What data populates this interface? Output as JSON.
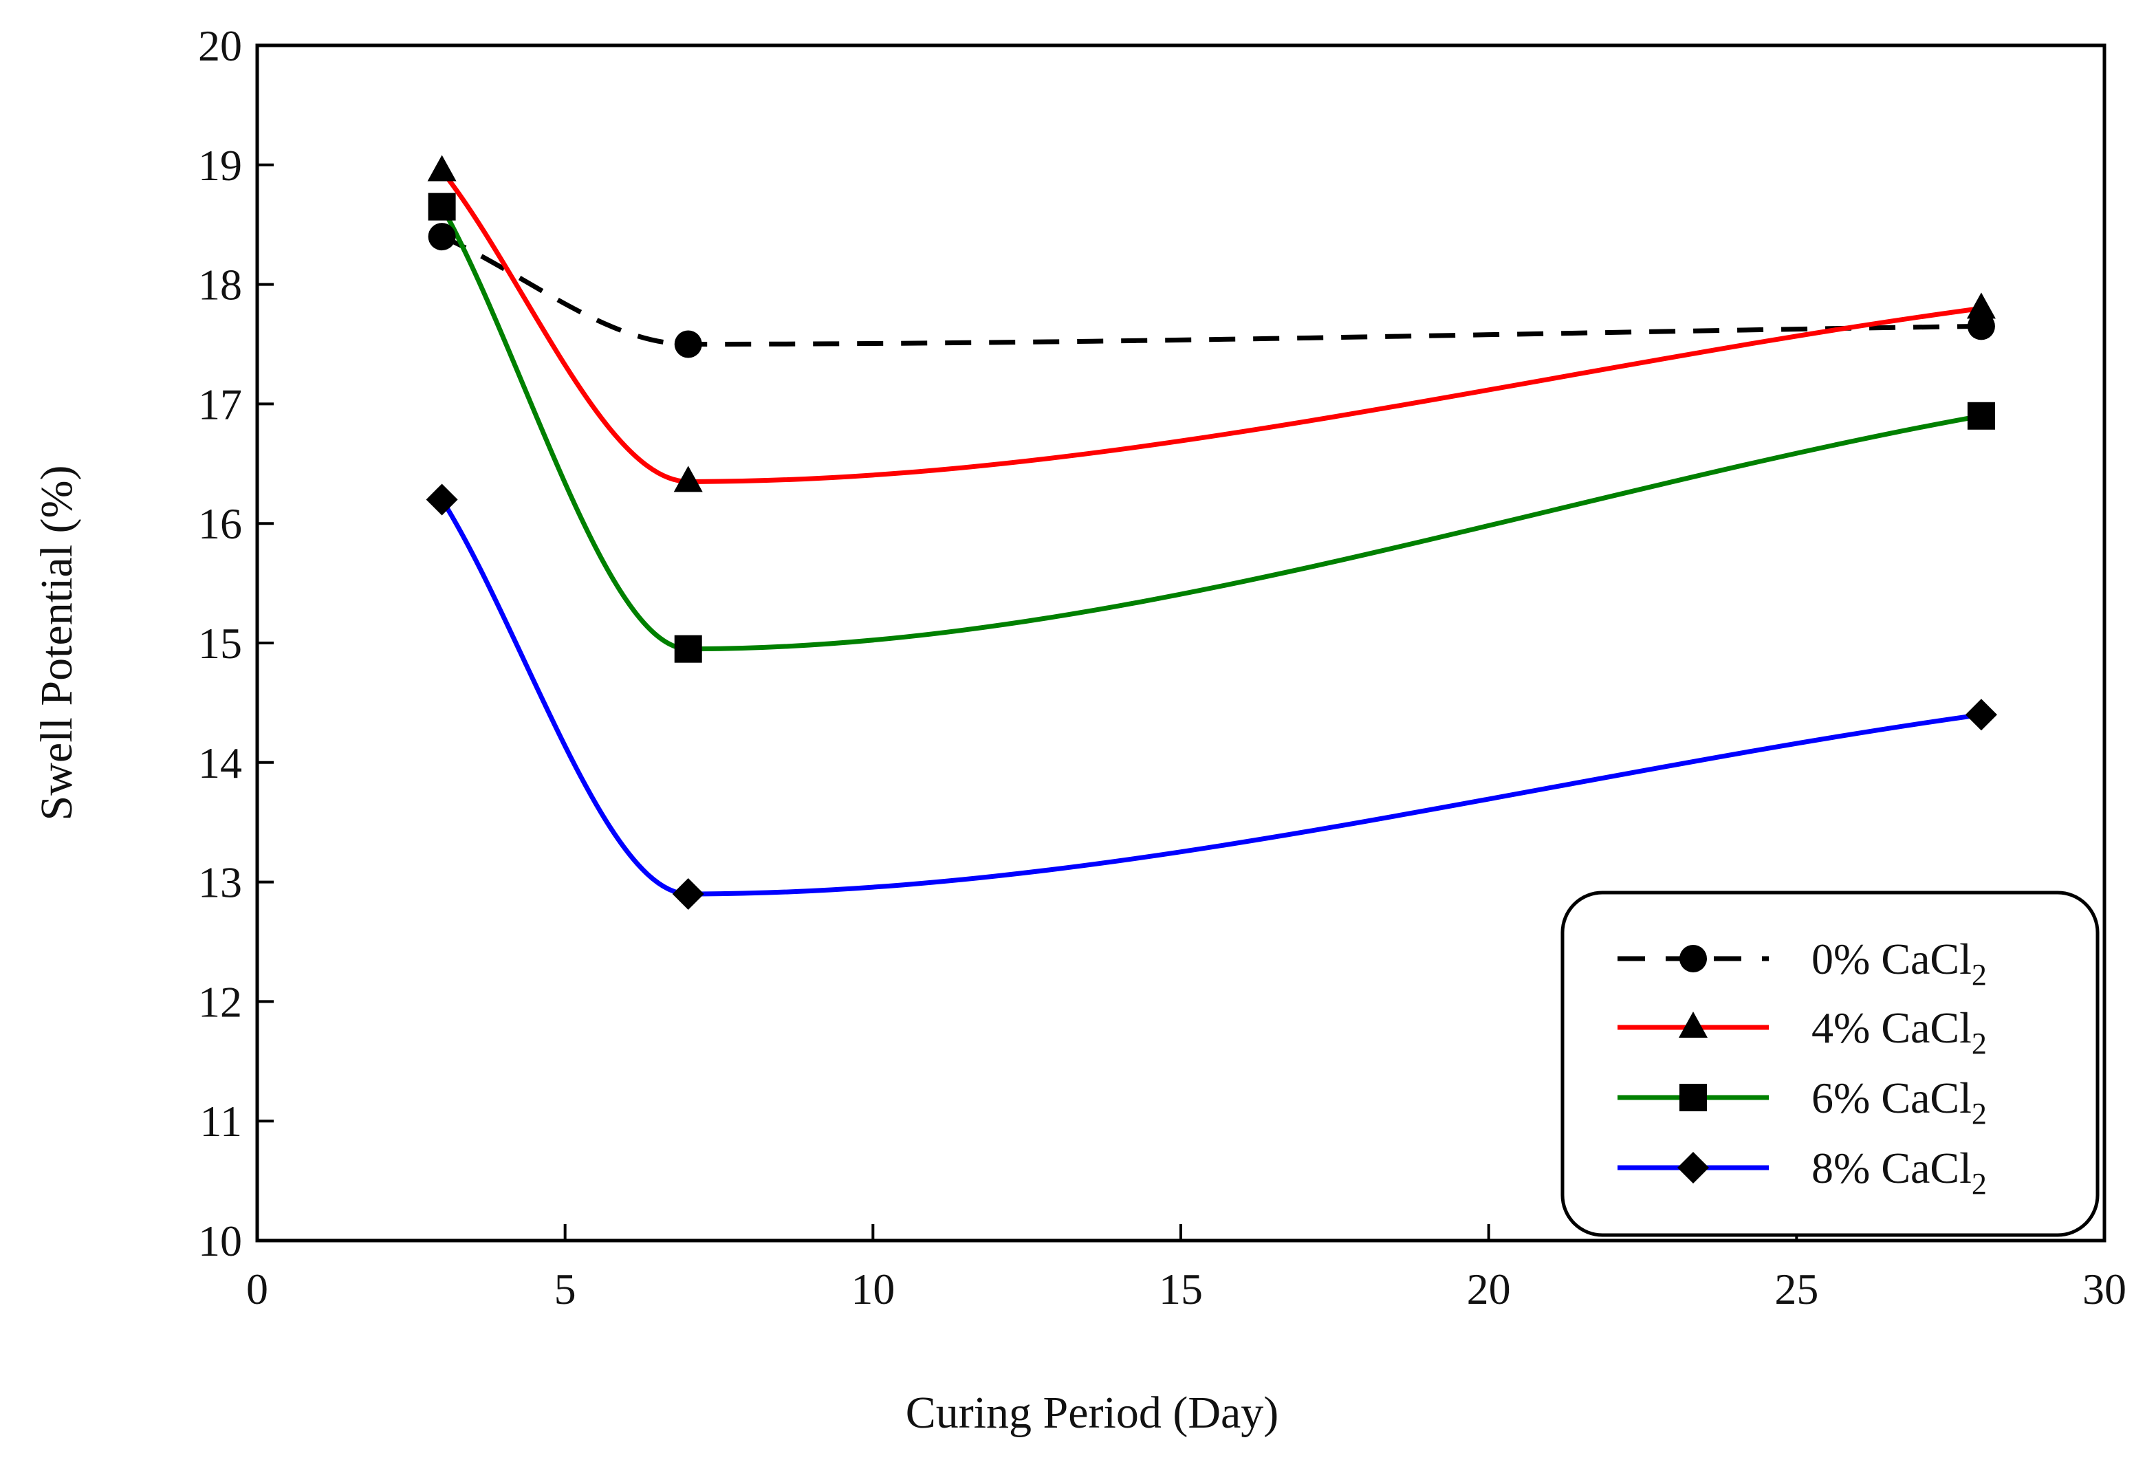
{
  "chart_data": {
    "type": "line",
    "title": "",
    "xlabel": "Curing Period (Day)",
    "ylabel": "Swell Potential  (%)",
    "xlim": [
      0,
      30
    ],
    "ylim": [
      10,
      20
    ],
    "xticks": [
      0,
      5,
      10,
      15,
      20,
      25,
      30
    ],
    "yticks": [
      10,
      11,
      12,
      13,
      14,
      15,
      16,
      17,
      18,
      19,
      20
    ],
    "grid": false,
    "legend_position": "bottom-right",
    "series": [
      {
        "name": "0% CaCl2",
        "label_main": "0% CaCl",
        "label_sub": "2",
        "color": "#000000",
        "dashed": true,
        "marker": "circle",
        "x": [
          3,
          7,
          28
        ],
        "values": [
          18.4,
          17.5,
          17.65
        ]
      },
      {
        "name": "4% CaCl2",
        "label_main": "4% CaCl",
        "label_sub": "2",
        "color": "#ff0000",
        "dashed": false,
        "marker": "triangle",
        "x": [
          3,
          7,
          28
        ],
        "values": [
          18.95,
          16.35,
          17.8
        ]
      },
      {
        "name": "6% CaCl2",
        "label_main": "6% CaCl",
        "label_sub": "2",
        "color": "#008000",
        "dashed": false,
        "marker": "square",
        "x": [
          3,
          7,
          28
        ],
        "values": [
          18.65,
          14.95,
          16.9
        ]
      },
      {
        "name": "8% CaCl2",
        "label_main": "8% CaCl",
        "label_sub": "2",
        "color": "#0000ff",
        "dashed": false,
        "marker": "diamond",
        "x": [
          3,
          7,
          28
        ],
        "values": [
          16.2,
          12.9,
          14.4
        ]
      }
    ]
  }
}
